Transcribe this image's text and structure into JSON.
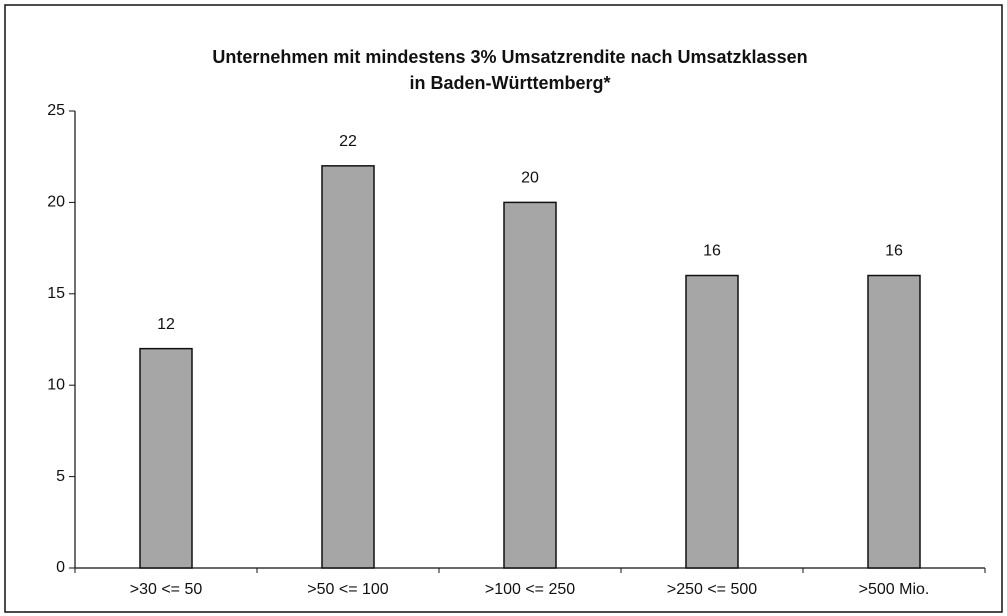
{
  "chart_data": {
    "type": "bar",
    "title": [
      "Unternehmen mit mindestens 3% Umsatzrendite nach Umsatzklassen",
      "in Baden-Württemberg*"
    ],
    "categories": [
      ">30 <= 50",
      ">50 <= 100",
      ">100 <= 250",
      ">250 <= 500",
      ">500 Mio."
    ],
    "values": [
      12,
      22,
      20,
      16,
      16
    ],
    "color": "#a6a6a6",
    "ylim": [
      0,
      25
    ],
    "yticks": [
      0,
      5,
      10,
      15,
      20,
      25
    ],
    "grid": false
  }
}
